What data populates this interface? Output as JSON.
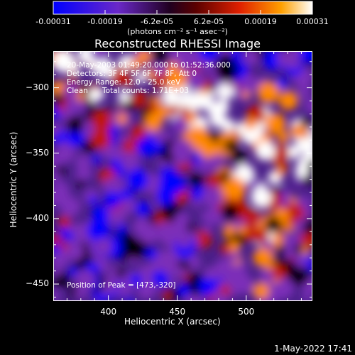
{
  "colorbar": {
    "tick_labels": [
      "-0.00031",
      "-0.00019",
      "-6.2e-05",
      "6.2e-05",
      "0.00019",
      "0.00031"
    ],
    "units": "(photons cm⁻² s⁻¹ asec⁻²)"
  },
  "chart_data": {
    "type": "heatmap",
    "title": "Reconstructed RHESSI Image",
    "xlabel": "Heliocentric X (arcsec)",
    "ylabel": "Heliocentric Y (arcsec)",
    "xlim": [
      360,
      548
    ],
    "ylim": [
      -463,
      -272
    ],
    "x_ticks": [
      400,
      450,
      500
    ],
    "y_ticks": [
      -300,
      -350,
      -400,
      -450
    ],
    "colormap": [
      "#0000ff",
      "#7b2fb8",
      "#000000",
      "#c01800",
      "#ff8800",
      "#ffffff"
    ],
    "value_range": [
      -0.00031,
      0.00031
    ],
    "annotations": {
      "time_range": "20-May-2003 01:49:20.000 to 01:52:36.000",
      "detectors": "Detectors: 3F 4F 5F 6F 7F 8F, Att 0",
      "energy_range": "Energy Range: 12.0 - 25.0 keV",
      "method": "Clean",
      "total_counts": "Total counts: 1.71E+03",
      "peak": "Position of Peak = [473,-320]"
    }
  },
  "footer": {
    "timestamp": "1-May-2022 17:41"
  }
}
